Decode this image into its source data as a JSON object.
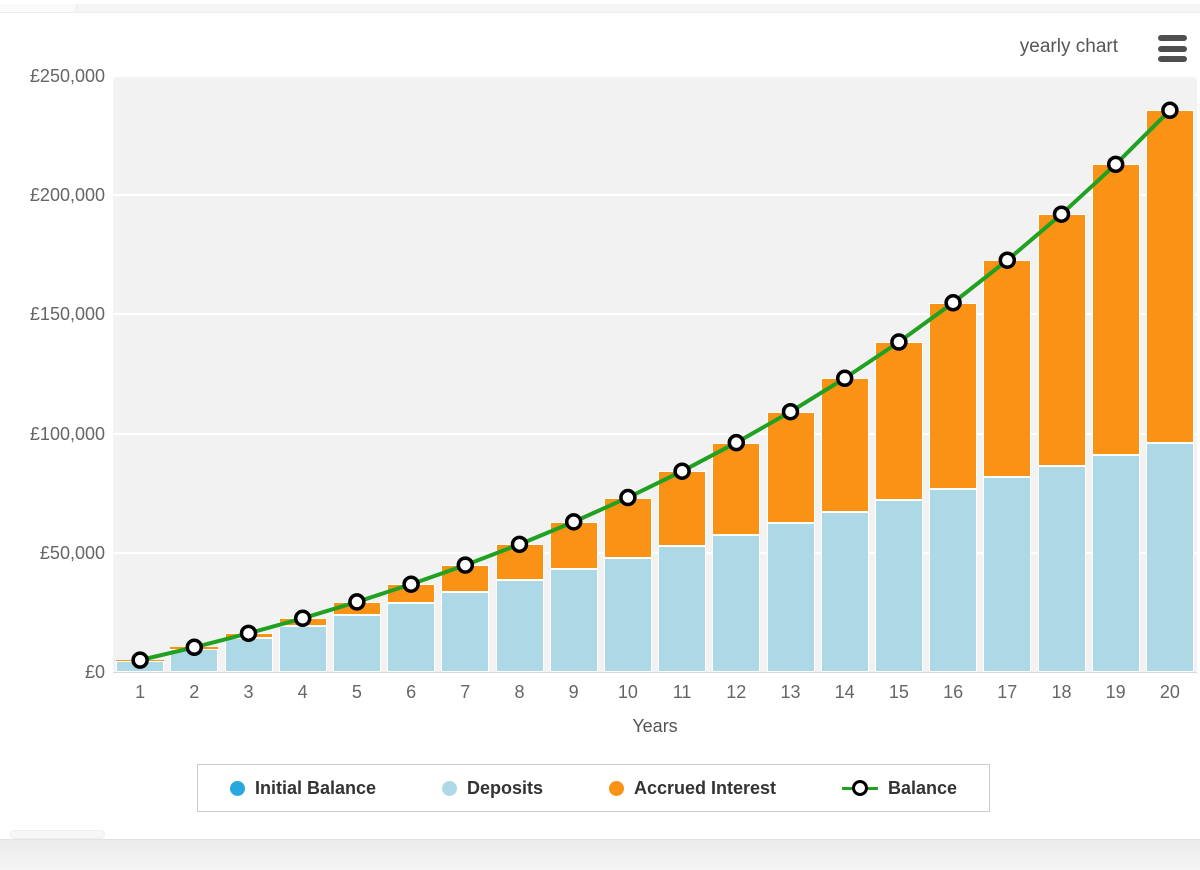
{
  "header": {
    "chart_type_label": "yearly chart",
    "menu_icon": "hamburger-icon"
  },
  "chart_data": {
    "type": "stacked-column-line",
    "title": "",
    "xlabel": "Years",
    "ylabel": "",
    "categories": [
      "1",
      "2",
      "3",
      "4",
      "5",
      "6",
      "7",
      "8",
      "9",
      "10",
      "11",
      "12",
      "13",
      "14",
      "15",
      "16",
      "17",
      "18",
      "19",
      "20"
    ],
    "ylim": [
      0,
      250000
    ],
    "ytick_step": 50000,
    "ytick_labels": [
      "£0",
      "£50,000",
      "£100,000",
      "£150,000",
      "£200,000",
      "£250,000"
    ],
    "currency": "£",
    "grid": true,
    "legend_position": "bottom",
    "plot_background": "#f2f2f2",
    "grid_color": "#ffffff",
    "axis_line_color": "#d9d9d9",
    "axis_text_color": "#666666",
    "series": [
      {
        "name": "Initial Balance",
        "type": "column",
        "color": "#29A8DF",
        "values": [
          0,
          0,
          0,
          0,
          0,
          0,
          0,
          0,
          0,
          0,
          0,
          0,
          0,
          0,
          0,
          0,
          0,
          0,
          0,
          0
        ]
      },
      {
        "name": "Deposits",
        "type": "column",
        "color": "#ADD8E6",
        "values": [
          4800,
          9600,
          14400,
          19200,
          24000,
          28800,
          33600,
          38400,
          43200,
          48000,
          52800,
          57600,
          62400,
          67200,
          72000,
          76800,
          81600,
          86400,
          91200,
          96000
        ]
      },
      {
        "name": "Accrued Interest",
        "type": "column",
        "color": "#FA9216",
        "values": [
          180,
          773,
          1814,
          3340,
          5391,
          8010,
          11245,
          15147,
          19772,
          25178,
          31432,
          38603,
          46768,
          56009,
          66415,
          78084,
          91119,
          105634,
          121753,
          139608
        ]
      },
      {
        "name": "Balance",
        "type": "line",
        "color": "#21A121",
        "marker_fill": "#ffffff",
        "marker_stroke": "#000000",
        "values": [
          4980,
          10373,
          16214,
          22540,
          29391,
          36810,
          44845,
          53547,
          62972,
          73178,
          84232,
          96203,
          109168,
          123209,
          138415,
          154884,
          172719,
          192034,
          212953,
          235608
        ]
      }
    ],
    "legend": [
      {
        "label": "Initial Balance",
        "swatch": "circle",
        "color": "#29A8DF"
      },
      {
        "label": "Deposits",
        "swatch": "circle",
        "color": "#ADD8E6"
      },
      {
        "label": "Accrued Interest",
        "swatch": "circle",
        "color": "#FA9216"
      },
      {
        "label": "Balance",
        "swatch": "line-marker",
        "color": "#21A121"
      }
    ]
  }
}
